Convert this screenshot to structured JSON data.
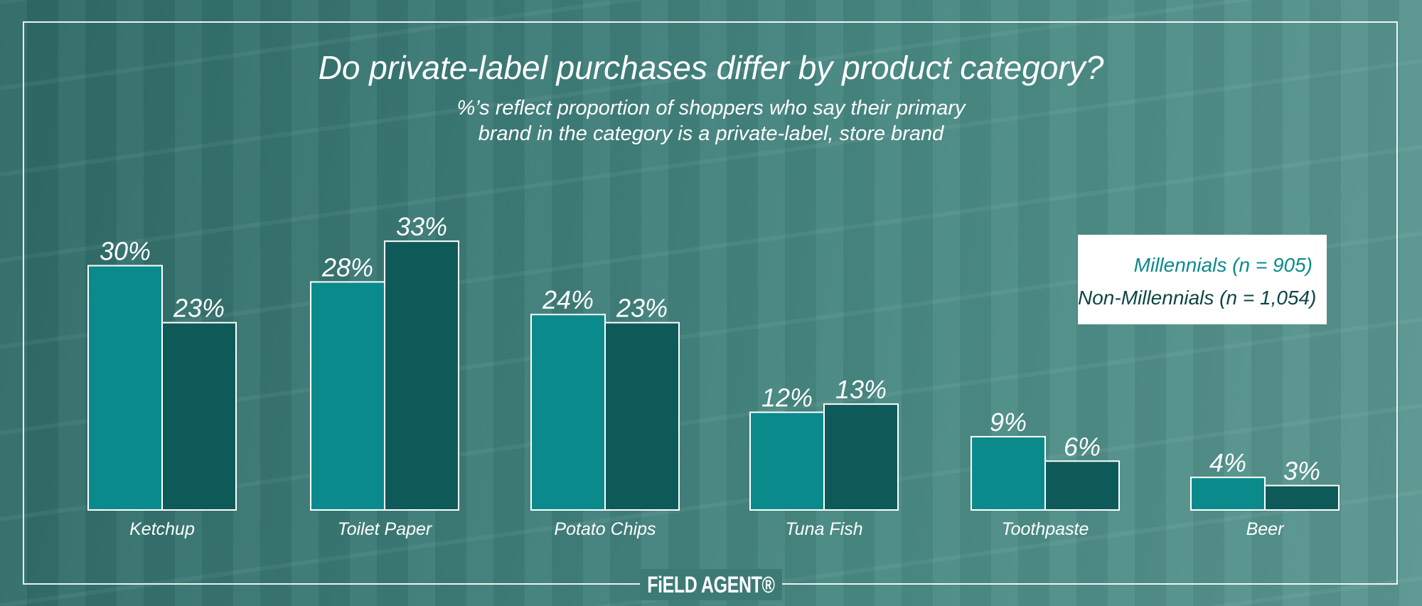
{
  "chart_data": {
    "type": "bar",
    "title": "Do private-label purchases differ by product category?",
    "subtitle_lines": [
      "%’s reflect proportion of shoppers who say their primary",
      "brand in the category is a private-label, store brand"
    ],
    "categories": [
      "Ketchup",
      "Toilet Paper",
      "Potato Chips",
      "Tuna Fish",
      "Toothpaste",
      "Beer"
    ],
    "series": [
      {
        "name": "Millennials (n = 905)",
        "values": [
          30,
          28,
          24,
          12,
          9,
          4
        ],
        "labels": [
          "30%",
          "28%",
          "24%",
          "12%",
          "9%",
          "4%"
        ],
        "color": "#0b8a8c"
      },
      {
        "name": "Non-Millennials (n = 1,054)",
        "values": [
          23,
          33,
          23,
          13,
          6,
          3
        ],
        "labels": [
          "23%",
          "33%",
          "23%",
          "13%",
          "6%",
          "3%"
        ],
        "color": "#0d5a59"
      }
    ],
    "ylim": [
      0,
      33
    ],
    "grid": false,
    "legend_position": "right"
  },
  "branding": {
    "logo_text": "FiELD AGENT®"
  },
  "colors": {
    "legend_millennials_text": "#0b8a8c",
    "legend_non_millennials_text": "#0e4544",
    "bar_outline": "#ffffff"
  }
}
